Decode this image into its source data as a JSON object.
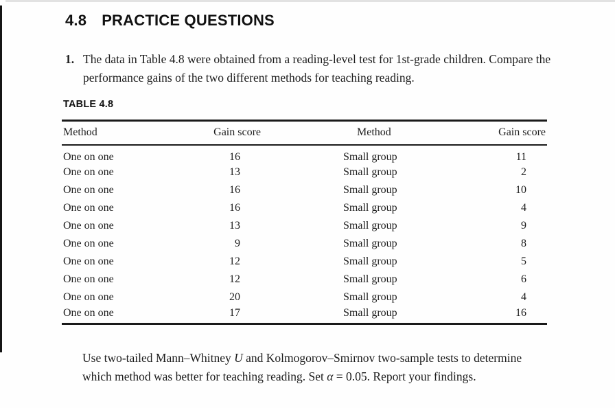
{
  "page": {
    "section_number": "4.8",
    "section_title": "PRACTICE QUESTIONS"
  },
  "question": {
    "number": "1.",
    "text": "The data in Table 4.8 were obtained from a reading-level test for 1st-grade children. Compare the performance gains of the two different methods for teaching reading."
  },
  "table": {
    "label": "TABLE 4.8",
    "columns": [
      "Method",
      "Gain score",
      "Method",
      "Gain score"
    ],
    "rows": [
      [
        "One on one",
        "16",
        "Small group",
        "11"
      ],
      [
        "One on one",
        "13",
        "Small group",
        "2"
      ],
      [
        "One on one",
        "16",
        "Small group",
        "10"
      ],
      [
        "One on one",
        "16",
        "Small group",
        "4"
      ],
      [
        "One on one",
        "13",
        "Small group",
        "9"
      ],
      [
        "One on one",
        "9",
        "Small group",
        "8"
      ],
      [
        "One on one",
        "12",
        "Small group",
        "5"
      ],
      [
        "One on one",
        "12",
        "Small group",
        "6"
      ],
      [
        "One on one",
        "20",
        "Small group",
        "4"
      ],
      [
        "One on one",
        "17",
        "Small group",
        "16"
      ]
    ]
  },
  "instructions": {
    "part1": "Use two-tailed Mann–Whitney ",
    "u_symbol": "U",
    "part2": " and Kolmogorov–Smirnov two-sample tests to determine which method was better for teaching reading. Set ",
    "alpha_symbol": "α",
    "part3": " = 0.05. Report your findings."
  },
  "colors": {
    "text": "#1c1c1c",
    "rule": "#1a1a1a",
    "background": "#fefefe"
  }
}
